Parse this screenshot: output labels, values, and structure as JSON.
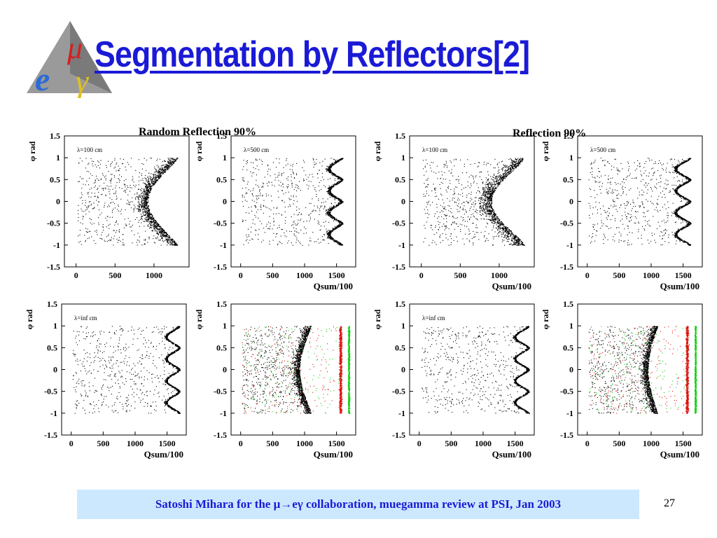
{
  "slide": {
    "title": "Segmentation by Reflectors[2]",
    "logo_letters": [
      "μ",
      "e",
      "γ"
    ],
    "left_group_title": "Random Reflection 90%",
    "right_group_title": "Reflection 90%",
    "footer": "Satoshi Mihara for the μ→eγ collaboration, muegamma review at PSI, Jan 2003",
    "page_number": "27"
  },
  "colors": {
    "title": "#1a1ad6",
    "footer_bg": "#cce8ff",
    "points": "#000000",
    "red_band": "#e01010",
    "green_band": "#10d010"
  },
  "chart_data": [
    {
      "type": "scatter",
      "panel": "top-left-1",
      "group": "Random Reflection 90%",
      "label": "λ=100 cm",
      "ylabel": "φ rad",
      "xlabel": "",
      "xlim": [
        -150,
        1450
      ],
      "ylim": [
        -1.5,
        1.5
      ],
      "xticks": [
        0,
        500,
        1000
      ],
      "yticks": [
        1.5,
        1,
        0.5,
        0,
        -0.5,
        -1,
        -1.5
      ],
      "edge": {
        "max": 1300,
        "depth": 380,
        "segments": 1,
        "width": 200,
        "sharp": 1.2
      },
      "layers": [
        {
          "color": "#000000"
        }
      ]
    },
    {
      "type": "scatter",
      "panel": "top-left-2",
      "group": "Random Reflection 90%",
      "label": "λ=500 cm",
      "ylabel": "φ rad",
      "xlabel": "Qsum/100",
      "xlim": [
        -150,
        1800
      ],
      "ylim": [
        -1.5,
        1.5
      ],
      "xticks": [
        0,
        500,
        1000,
        1500
      ],
      "yticks": [
        1.5,
        1,
        0.5,
        0,
        -0.5,
        -1,
        -1.5
      ],
      "edge": {
        "max": 1600,
        "depth": 200,
        "segments": 4,
        "width": 80,
        "sharp": 1.4
      },
      "layers": [
        {
          "color": "#000000"
        }
      ]
    },
    {
      "type": "scatter",
      "panel": "top-right-1",
      "group": "Reflection 90%",
      "label": "λ=100 cm",
      "ylabel": "φ rad",
      "xlabel": "Qsum/100",
      "xlim": [
        -150,
        1450
      ],
      "ylim": [
        -1.5,
        1.5
      ],
      "xticks": [
        0,
        500,
        1000
      ],
      "yticks": [
        1.5,
        1,
        0.5,
        0,
        -0.5,
        -1,
        -1.5
      ],
      "edge": {
        "max": 1320,
        "depth": 420,
        "segments": 1,
        "width": 230,
        "sharp": 1.3
      },
      "layers": [
        {
          "color": "#000000"
        }
      ]
    },
    {
      "type": "scatter",
      "panel": "top-right-2",
      "group": "Reflection 90%",
      "label": "λ=500 cm",
      "ylabel": "φ rad",
      "xlabel": "Qsum/100",
      "xlim": [
        -150,
        1800
      ],
      "ylim": [
        -1.5,
        1.5
      ],
      "xticks": [
        0,
        500,
        1000,
        1500
      ],
      "yticks": [
        1.5,
        1,
        0.5,
        0,
        -0.5,
        -1,
        -1.5
      ],
      "edge": {
        "max": 1620,
        "depth": 220,
        "segments": 4,
        "width": 70,
        "sharp": 1.5
      },
      "layers": [
        {
          "color": "#000000"
        }
      ]
    },
    {
      "type": "scatter",
      "panel": "bottom-left-1",
      "group": "Random Reflection 90%",
      "label": "λ=inf cm",
      "ylabel": "φ rad",
      "xlabel": "Qsum/100",
      "xlim": [
        -150,
        1800
      ],
      "ylim": [
        -1.5,
        1.5
      ],
      "xticks": [
        0,
        500,
        1000,
        1500
      ],
      "yticks": [
        1.5,
        1,
        0.5,
        0,
        -0.5,
        -1,
        -1.5
      ],
      "edge": {
        "max": 1700,
        "depth": 200,
        "segments": 4,
        "width": 55,
        "sharp": 1.6
      },
      "layers": [
        {
          "color": "#000000"
        }
      ]
    },
    {
      "type": "scatter",
      "panel": "bottom-left-2",
      "group": "Random Reflection 90%",
      "label": "",
      "ylabel": "φ rad",
      "xlabel": "Qsum/100",
      "xlim": [
        -150,
        1800
      ],
      "ylim": [
        -1.5,
        1.5
      ],
      "xticks": [
        0,
        500,
        1000,
        1500
      ],
      "yticks": [
        1.5,
        1,
        0.5,
        0,
        -0.5,
        -1,
        -1.5
      ],
      "edge": {
        "max": 1100,
        "depth": 180,
        "segments": 1,
        "width": 150,
        "sharp": 1.1
      },
      "layers": [
        {
          "color": "#000000"
        },
        {
          "color": "#e01010"
        },
        {
          "color": "#10d010"
        }
      ]
    },
    {
      "type": "scatter",
      "panel": "bottom-right-1",
      "group": "Reflection 90%",
      "label": "λ=inf cm",
      "ylabel": "φ rad",
      "xlabel": "Qsum/100",
      "xlim": [
        -150,
        1800
      ],
      "ylim": [
        -1.5,
        1.5
      ],
      "xticks": [
        0,
        500,
        1000,
        1500
      ],
      "yticks": [
        1.5,
        1,
        0.5,
        0,
        -0.5,
        -1,
        -1.5
      ],
      "edge": {
        "max": 1720,
        "depth": 210,
        "segments": 4,
        "width": 55,
        "sharp": 1.6
      },
      "layers": [
        {
          "color": "#000000"
        }
      ]
    },
    {
      "type": "scatter",
      "panel": "bottom-right-2",
      "group": "Reflection 90%",
      "label": "",
      "ylabel": "φ rad",
      "xlabel": "Qsum/100",
      "xlim": [
        -150,
        1800
      ],
      "ylim": [
        -1.5,
        1.5
      ],
      "xticks": [
        0,
        500,
        1000,
        1500
      ],
      "yticks": [
        1.5,
        1,
        0.5,
        0,
        -0.5,
        -1,
        -1.5
      ],
      "edge": {
        "max": 1100,
        "depth": 150,
        "segments": 1,
        "width": 140,
        "sharp": 1.0
      },
      "layers": [
        {
          "color": "#000000"
        },
        {
          "color": "#e01010"
        },
        {
          "color": "#10d010"
        }
      ]
    }
  ]
}
